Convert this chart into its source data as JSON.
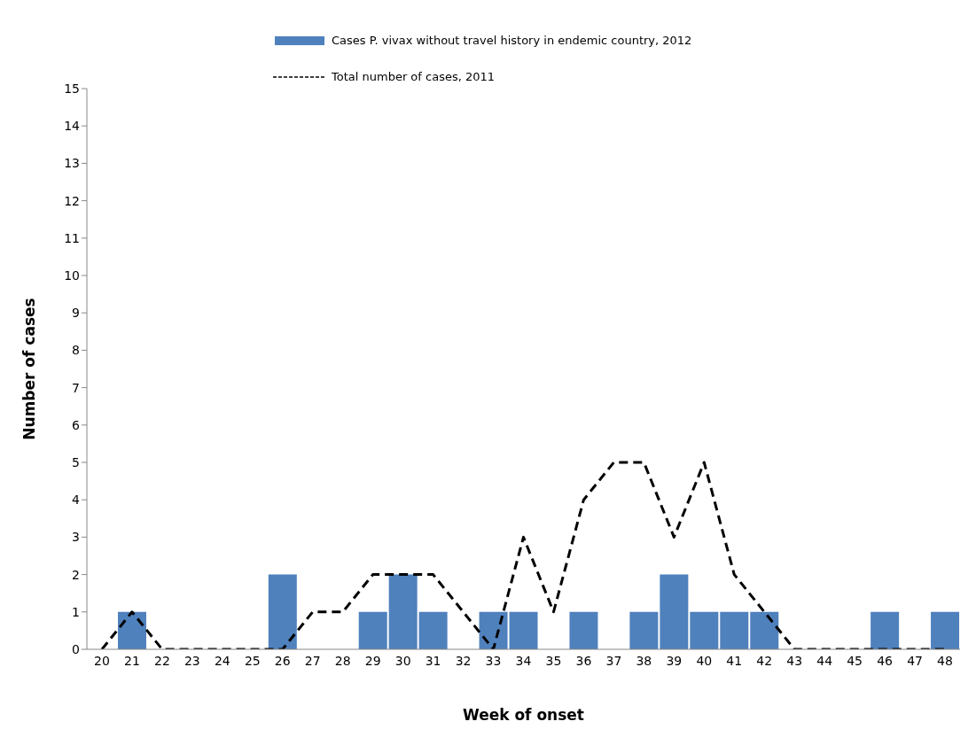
{
  "chart_data": {
    "type": "bar",
    "xlabel": "Week of onset",
    "ylabel": "Number of cases",
    "categories": [
      "20",
      "21",
      "22",
      "23",
      "24",
      "25",
      "26",
      "27",
      "28",
      "29",
      "30",
      "31",
      "32",
      "33",
      "34",
      "35",
      "36",
      "37",
      "38",
      "39",
      "40",
      "41",
      "42",
      "43",
      "44",
      "45",
      "46",
      "47",
      "48"
    ],
    "series": [
      {
        "name": "Cases P. vivax without travel history in endemic country, 2012",
        "color": "#4f81bd",
        "values": [
          0,
          1,
          0,
          0,
          0,
          0,
          2,
          0,
          0,
          1,
          2,
          1,
          0,
          1,
          1,
          0,
          1,
          0,
          1,
          2,
          1,
          1,
          1,
          0,
          0,
          0,
          1,
          0,
          1
        ]
      },
      {
        "name": "Total number of cases, 2011",
        "type": "line",
        "color": "#000000",
        "line_style": "dashed",
        "marker": "none",
        "values": [
          0,
          1,
          0,
          0,
          0,
          0,
          0,
          1,
          1,
          2,
          2,
          2,
          1,
          0,
          3,
          1,
          4,
          5,
          5,
          3,
          5,
          2,
          1,
          0,
          0,
          0,
          0,
          0,
          0
        ]
      }
    ],
    "ylim": [
      0,
      15
    ],
    "yticks": [
      0,
      1,
      2,
      3,
      4,
      5,
      6,
      7,
      8,
      9,
      10,
      11,
      12,
      13,
      14,
      15
    ],
    "legend": "top"
  }
}
